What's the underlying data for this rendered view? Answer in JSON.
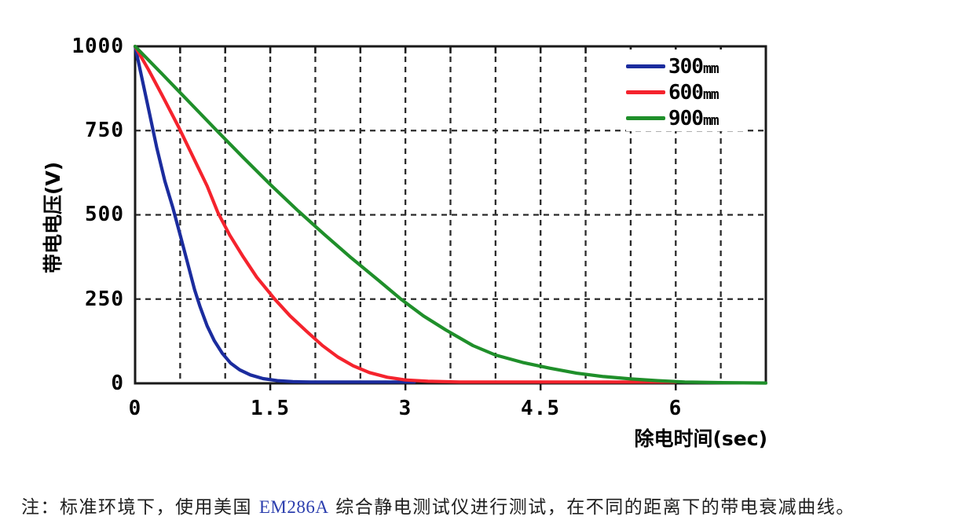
{
  "chart_data": {
    "type": "line",
    "title": "",
    "xlabel": "除电时间(sec)",
    "ylabel": "带电电压(V)",
    "xlim": [
      0,
      7
    ],
    "ylim": [
      0,
      1000
    ],
    "grid": "on",
    "x_minor_grid_step": 0.5,
    "grid_color": "#2b2b2b",
    "axis_color": "#1a1a1a",
    "legend_position": "top-right-inside",
    "xticks": [
      {
        "value": 0,
        "label": "0"
      },
      {
        "value": 1.5,
        "label": "1.5"
      },
      {
        "value": 3,
        "label": "3"
      },
      {
        "value": 4.5,
        "label": "4.5"
      },
      {
        "value": 6,
        "label": "6"
      }
    ],
    "yticks": [
      {
        "value": 1000,
        "label": "1000"
      },
      {
        "value": 750,
        "label": "750"
      },
      {
        "value": 500,
        "label": "500"
      },
      {
        "value": 250,
        "label": "250"
      },
      {
        "value": 0,
        "label": "0"
      }
    ],
    "y_gridline_values": [
      250,
      500,
      750
    ],
    "series": [
      {
        "name": "300mm",
        "label_value": "300",
        "label_unit": "mm",
        "color": "#1b2c9e",
        "points": [
          [
            0,
            1000
          ],
          [
            0.08,
            900
          ],
          [
            0.16,
            800
          ],
          [
            0.24,
            700
          ],
          [
            0.33,
            600
          ],
          [
            0.42,
            520
          ],
          [
            0.5,
            440
          ],
          [
            0.58,
            360
          ],
          [
            0.66,
            278
          ],
          [
            0.72,
            228
          ],
          [
            0.8,
            170
          ],
          [
            0.88,
            126
          ],
          [
            0.97,
            88
          ],
          [
            1.06,
            60
          ],
          [
            1.16,
            40
          ],
          [
            1.28,
            25
          ],
          [
            1.42,
            14
          ],
          [
            1.58,
            8
          ],
          [
            1.75,
            5
          ],
          [
            1.95,
            4
          ],
          [
            2.3,
            4
          ],
          [
            2.7,
            4
          ],
          [
            3.1,
            4
          ]
        ]
      },
      {
        "name": "600mm",
        "label_value": "600",
        "label_unit": "mm",
        "color": "#f5232d",
        "points": [
          [
            0,
            1000
          ],
          [
            0.15,
            930
          ],
          [
            0.3,
            855
          ],
          [
            0.48,
            762
          ],
          [
            0.65,
            668
          ],
          [
            0.8,
            585
          ],
          [
            0.92,
            506
          ],
          [
            1.05,
            440
          ],
          [
            1.2,
            375
          ],
          [
            1.35,
            315
          ],
          [
            1.55,
            250
          ],
          [
            1.72,
            200
          ],
          [
            1.9,
            155
          ],
          [
            2.08,
            112
          ],
          [
            2.25,
            78
          ],
          [
            2.42,
            52
          ],
          [
            2.6,
            32
          ],
          [
            2.8,
            18
          ],
          [
            3.0,
            10
          ],
          [
            3.25,
            6
          ],
          [
            3.6,
            4
          ],
          [
            4.2,
            4
          ],
          [
            5.0,
            4
          ],
          [
            6.0,
            4
          ]
        ]
      },
      {
        "name": "900mm",
        "label_value": "900",
        "label_unit": "mm",
        "color": "#1f8f2a",
        "points": [
          [
            0,
            1000
          ],
          [
            0.3,
            918
          ],
          [
            0.6,
            835
          ],
          [
            0.9,
            752
          ],
          [
            1.2,
            670
          ],
          [
            1.5,
            590
          ],
          [
            1.8,
            514
          ],
          [
            2.1,
            442
          ],
          [
            2.4,
            372
          ],
          [
            2.7,
            306
          ],
          [
            2.95,
            250
          ],
          [
            3.2,
            200
          ],
          [
            3.45,
            158
          ],
          [
            3.75,
            112
          ],
          [
            4.0,
            84
          ],
          [
            4.3,
            62
          ],
          [
            4.6,
            45
          ],
          [
            4.9,
            30
          ],
          [
            5.2,
            20
          ],
          [
            5.5,
            13
          ],
          [
            5.8,
            8
          ],
          [
            6.1,
            4
          ],
          [
            6.5,
            2
          ],
          [
            7.0,
            1
          ]
        ]
      }
    ]
  },
  "note": {
    "prefix": "注：标准环境下，使用美国 ",
    "instrument": "EM286A",
    "suffix": " 综合静电测试仪进行测试，在不同的距离下的带电衰减曲线。",
    "instrument_color": "#2b3eae"
  }
}
